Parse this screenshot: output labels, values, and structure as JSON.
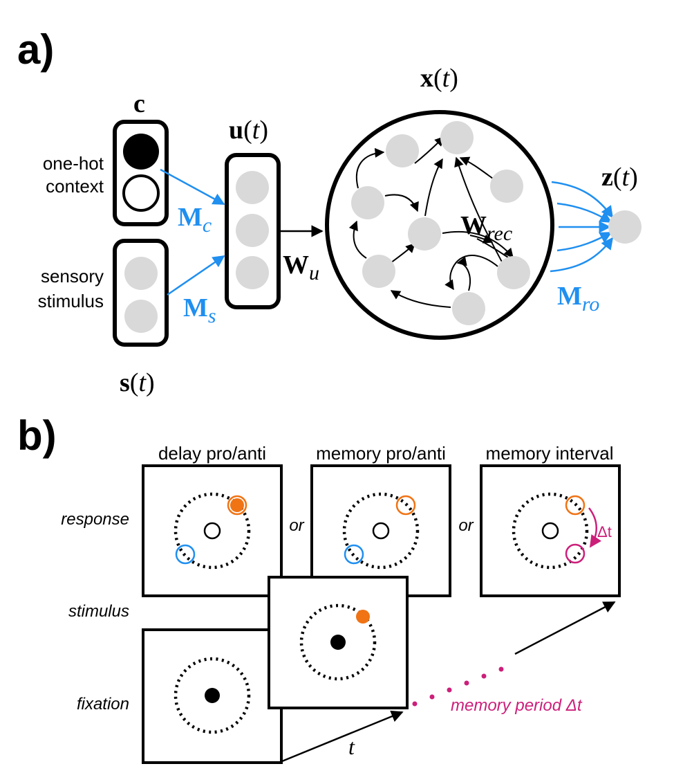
{
  "colors": {
    "blue": "#1f8ff0",
    "orange": "#f07314",
    "magenta": "#cc1f7a",
    "gray": "#d9d9d9",
    "black": "#000000"
  },
  "panel_a": {
    "label": "a)",
    "context_title": "c",
    "context_label_line1": "one-hot",
    "context_label_line2": "context",
    "sensory_label_line1": "sensory",
    "sensory_label_line2": "stimulus",
    "s_label": {
      "base": "s",
      "open": "(",
      "var": "t",
      "close": ")"
    },
    "u_label": {
      "base": "u",
      "open": "(",
      "var": "t",
      "close": ")"
    },
    "x_label": {
      "base": "x",
      "open": "(",
      "var": "t",
      "close": ")"
    },
    "z_label": {
      "base": "z",
      "open": "(",
      "var": "t",
      "close": ")"
    },
    "Mc": {
      "base": "M",
      "sub": "c"
    },
    "Ms": {
      "base": "M",
      "sub": "s"
    },
    "Wu": {
      "base": "W",
      "sub": "u"
    },
    "Wrec": {
      "base": "W",
      "sub": "rec"
    },
    "Mro": {
      "base": "M",
      "sub": "ro"
    }
  },
  "panel_b": {
    "label": "b)",
    "titles": [
      "delay pro/anti",
      "memory pro/anti",
      "memory interval"
    ],
    "row_labels": {
      "response": "response",
      "stimulus": "stimulus",
      "fixation": "fixation"
    },
    "or_label": "or",
    "delta_t": "Δt",
    "t_label": "t",
    "memory_period": "memory period Δt"
  }
}
